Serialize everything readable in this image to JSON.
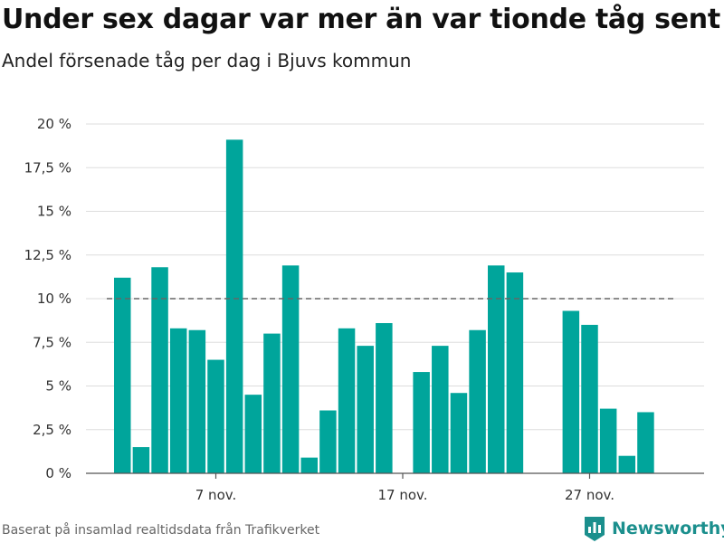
{
  "header": {
    "title": "Under sex dagar var mer än var tionde tåg sent",
    "subtitle": "Andel försenade tåg per dag i Bjuvs kommun"
  },
  "footer": {
    "source": "Baserat på insamlad realtidsdata från Trafikverket",
    "brand": "Newsworthy"
  },
  "colors": {
    "bar": "#00a59b",
    "reference_line": "#666666",
    "grid": "#dddddd",
    "brand": "#1b8f8d"
  },
  "icons": {
    "brand_logo": "bar-chart-shield-icon"
  },
  "chart_data": {
    "type": "bar",
    "x_unit": "day of November",
    "x": [
      2,
      3,
      4,
      5,
      6,
      7,
      8,
      9,
      10,
      11,
      12,
      13,
      14,
      15,
      16,
      17,
      18,
      19,
      20,
      21,
      22,
      23,
      24,
      25,
      26,
      27,
      28,
      29,
      30
    ],
    "values": [
      11.2,
      1.5,
      11.8,
      8.3,
      8.2,
      6.5,
      19.1,
      4.5,
      8.0,
      11.9,
      0.9,
      3.6,
      8.3,
      7.3,
      8.6,
      null,
      5.8,
      7.3,
      4.6,
      8.2,
      11.9,
      11.5,
      null,
      null,
      9.3,
      8.5,
      3.7,
      1.0,
      3.5
    ],
    "ylim": [
      0,
      20
    ],
    "yticks": [
      0,
      2.5,
      5,
      7.5,
      10,
      12.5,
      15,
      17.5,
      20
    ],
    "ytick_labels": [
      "0 %",
      "2,5 %",
      "5 %",
      "7,5 %",
      "10 %",
      "12,5 %",
      "15 %",
      "17,5 %",
      "20 %"
    ],
    "xticks": [
      7,
      17,
      27
    ],
    "xtick_labels": [
      "7 nov.",
      "17 nov.",
      "27 nov."
    ],
    "reference_line": 10,
    "grid": true,
    "legend": "none",
    "xlabel": "",
    "ylabel": ""
  }
}
